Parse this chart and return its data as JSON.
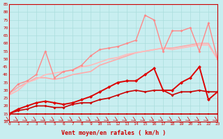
{
  "x": [
    0,
    1,
    2,
    3,
    4,
    5,
    6,
    7,
    8,
    9,
    10,
    11,
    12,
    13,
    14,
    15,
    16,
    17,
    18,
    19,
    20,
    21,
    22,
    23
  ],
  "xlabel": "Vent moyen/en rafales ( km/h )",
  "ylabel": "",
  "xlim": [
    0,
    23
  ],
  "ylim": [
    10,
    85
  ],
  "yticks": [
    10,
    15,
    20,
    25,
    30,
    35,
    40,
    45,
    50,
    55,
    60,
    65,
    70,
    75,
    80,
    85
  ],
  "background_color": "#c8eef0",
  "grid_color": "#aadddd",
  "line1": {
    "y": [
      15,
      15,
      15,
      15,
      15,
      15,
      15,
      15,
      15,
      15,
      15,
      15,
      15,
      15,
      15,
      15,
      15,
      15,
      15,
      15,
      15,
      15,
      15,
      15
    ],
    "color": "#cc0000",
    "lw": 1.2,
    "marker": "s",
    "ms": 2
  },
  "line2": {
    "y": [
      15,
      17,
      18,
      20,
      20,
      19,
      19,
      21,
      22,
      22,
      24,
      25,
      27,
      29,
      30,
      29,
      30,
      30,
      27,
      29,
      29,
      30,
      29,
      29
    ],
    "color": "#cc0000",
    "lw": 1.2,
    "marker": "D",
    "ms": 2
  },
  "line3": {
    "y": [
      15,
      18,
      20,
      22,
      23,
      22,
      21,
      22,
      24,
      26,
      29,
      32,
      35,
      36,
      36,
      40,
      44,
      30,
      30,
      35,
      38,
      45,
      24,
      29
    ],
    "color": "#dd0000",
    "lw": 1.4,
    "marker": "D",
    "ms": 2.5
  },
  "line4": {
    "y": [
      28,
      32,
      35,
      38,
      38,
      37,
      38,
      40,
      41,
      42,
      46,
      48,
      50,
      52,
      54,
      55,
      56,
      57,
      57,
      58,
      59,
      60,
      60,
      50
    ],
    "color": "#ffaaaa",
    "lw": 1.2,
    "marker": null,
    "ms": 0
  },
  "line5": {
    "y": [
      28,
      34,
      36,
      40,
      55,
      38,
      42,
      43,
      46,
      52,
      56,
      57,
      58,
      60,
      62,
      78,
      75,
      55,
      68,
      68,
      70,
      55,
      73,
      50
    ],
    "color": "#ff8888",
    "lw": 1.0,
    "marker": "D",
    "ms": 2
  },
  "line6": {
    "y": [
      27,
      30,
      35,
      37,
      40,
      41,
      42,
      43,
      45,
      46,
      48,
      50,
      51,
      53,
      54,
      55,
      56,
      57,
      56,
      57,
      58,
      59,
      59,
      50
    ],
    "color": "#ffbbbb",
    "lw": 1.2,
    "marker": null,
    "ms": 0
  },
  "arrow_color": "#cc0000"
}
